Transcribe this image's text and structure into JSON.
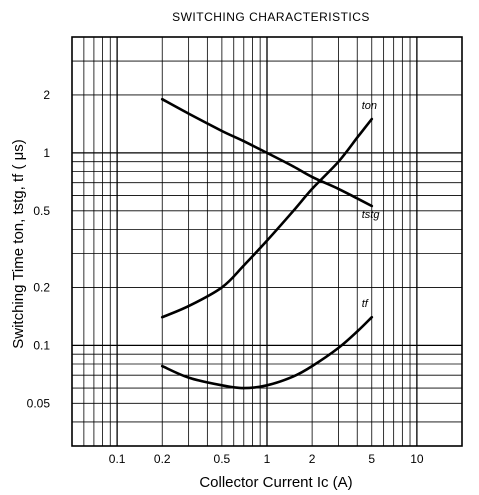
{
  "chart_data": {
    "type": "line",
    "title": "SWITCHING CHARACTERISTICS",
    "xlabel": "Collector Current  Ic (A)",
    "ylabel": "Switching Time  ton, tstg, tf ( μs)",
    "x_scale": "log",
    "y_scale": "log",
    "xlim": [
      0.05,
      20
    ],
    "ylim": [
      0.03,
      4
    ],
    "grid": true,
    "x_ticks": [
      {
        "value": 0.1,
        "label": "0.1"
      },
      {
        "value": 0.2,
        "label": "0.2"
      },
      {
        "value": 0.5,
        "label": "0.5"
      },
      {
        "value": 1,
        "label": "1"
      },
      {
        "value": 2,
        "label": "2"
      },
      {
        "value": 5,
        "label": "5"
      },
      {
        "value": 10,
        "label": "10"
      }
    ],
    "y_ticks": [
      {
        "value": 0.05,
        "label": "0.05"
      },
      {
        "value": 0.1,
        "label": "0.1"
      },
      {
        "value": 0.2,
        "label": "0.2"
      },
      {
        "value": 0.5,
        "label": "0.5"
      },
      {
        "value": 1,
        "label": "1"
      },
      {
        "value": 2,
        "label": "2"
      }
    ],
    "series": [
      {
        "name": "ton",
        "x": [
          0.2,
          0.3,
          0.5,
          0.7,
          1,
          1.5,
          2,
          3,
          4,
          5
        ],
        "y": [
          0.14,
          0.16,
          0.2,
          0.26,
          0.35,
          0.5,
          0.65,
          0.9,
          1.2,
          1.5
        ]
      },
      {
        "name": "tstg",
        "x": [
          0.2,
          0.3,
          0.5,
          0.7,
          1,
          1.5,
          2,
          3,
          4,
          5
        ],
        "y": [
          1.9,
          1.6,
          1.3,
          1.15,
          1.0,
          0.85,
          0.75,
          0.65,
          0.58,
          0.53
        ]
      },
      {
        "name": "tf",
        "x": [
          0.2,
          0.3,
          0.5,
          0.7,
          1,
          1.5,
          2,
          3,
          4,
          5
        ],
        "y": [
          0.078,
          0.068,
          0.062,
          0.06,
          0.062,
          0.069,
          0.078,
          0.097,
          0.118,
          0.14
        ]
      }
    ]
  }
}
